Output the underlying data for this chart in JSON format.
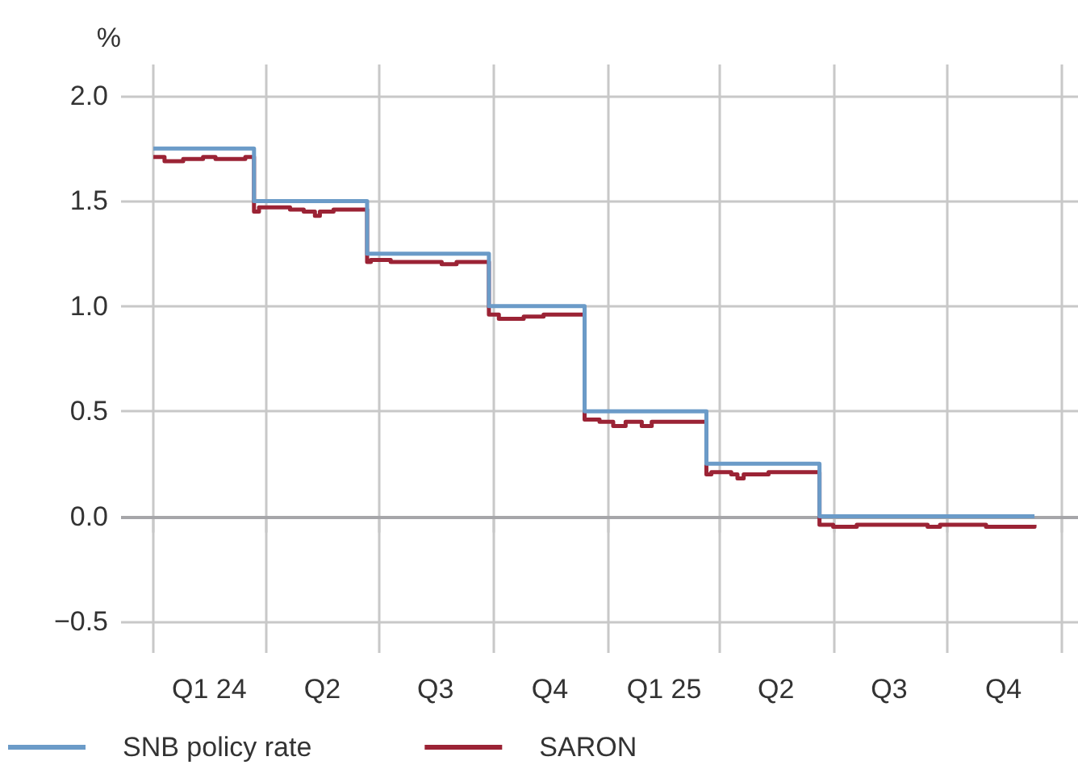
{
  "chart_data": {
    "type": "step",
    "ylabel": "%",
    "xlim": [
      "2023-12-06",
      "2026-01-14"
    ],
    "xticks": [
      {
        "value": "2024-01-01",
        "label": null
      },
      {
        "value": "2024-02-15",
        "label": "Q1 24"
      },
      {
        "value": "2024-04-01",
        "label": null
      },
      {
        "value": "2024-05-16",
        "label": "Q2"
      },
      {
        "value": "2024-07-01",
        "label": null
      },
      {
        "value": "2024-08-15",
        "label": "Q3"
      },
      {
        "value": "2024-10-01",
        "label": null
      },
      {
        "value": "2024-11-15",
        "label": "Q4"
      },
      {
        "value": "2025-01-01",
        "label": null
      },
      {
        "value": "2025-02-15",
        "label": "Q1 25"
      },
      {
        "value": "2025-04-01",
        "label": null
      },
      {
        "value": "2025-05-16",
        "label": "Q2"
      },
      {
        "value": "2025-07-01",
        "label": null
      },
      {
        "value": "2025-08-15",
        "label": "Q3"
      },
      {
        "value": "2025-10-01",
        "label": null
      },
      {
        "value": "2025-11-15",
        "label": "Q4"
      },
      {
        "value": "2026-01-01",
        "label": null
      }
    ],
    "ylim": [
      -0.65,
      2.15
    ],
    "yticks": [
      {
        "value": -0.5,
        "label": "−0.5"
      },
      {
        "value": 0,
        "label": "0.0"
      },
      {
        "value": 0.5,
        "label": "0.5"
      },
      {
        "value": 1,
        "label": "1.0"
      },
      {
        "value": 1.5,
        "label": "1.5"
      },
      {
        "value": 2,
        "label": "2.0"
      }
    ],
    "grid": true,
    "legend": "bottom left",
    "ref_lines": [
      {
        "axis": "y",
        "value": 0,
        "color": "#a6a6a9"
      }
    ],
    "series": [
      {
        "name": "SNB policy rate",
        "color": "#6b9bc8",
        "x": [
          "2024-01-01",
          "2024-03-22",
          "2024-06-21",
          "2024-09-27",
          "2024-12-13",
          "2025-03-21",
          "2025-06-20",
          "2025-12-10"
        ],
        "values": [
          1.75,
          1.5,
          1.25,
          1.0,
          0.5,
          0.25,
          0,
          0
        ]
      },
      {
        "name": "SARON",
        "color": "#9b2335",
        "x": [
          "2024-01-01",
          "2024-01-10",
          "2024-01-25",
          "2024-02-10",
          "2024-02-20",
          "2024-03-15",
          "2024-03-22",
          "2024-03-26",
          "2024-04-20",
          "2024-05-01",
          "2024-05-10",
          "2024-05-14",
          "2024-05-25",
          "2024-06-21",
          "2024-06-24",
          "2024-07-10",
          "2024-08-20",
          "2024-09-01",
          "2024-09-27",
          "2024-10-05",
          "2024-10-25",
          "2024-11-10",
          "2024-12-13",
          "2024-12-25",
          "2025-01-05",
          "2025-01-15",
          "2025-01-28",
          "2025-02-05",
          "2025-03-21",
          "2025-03-25",
          "2025-04-10",
          "2025-04-15",
          "2025-04-20",
          "2025-05-10",
          "2025-06-20",
          "2025-07-01",
          "2025-07-20",
          "2025-09-15",
          "2025-09-25",
          "2025-11-01",
          "2025-12-10"
        ],
        "values": [
          1.71,
          1.69,
          1.7,
          1.71,
          1.7,
          1.71,
          1.45,
          1.47,
          1.46,
          1.45,
          1.43,
          1.45,
          1.46,
          1.21,
          1.22,
          1.21,
          1.2,
          1.21,
          0.96,
          0.94,
          0.95,
          0.96,
          0.46,
          0.45,
          0.43,
          0.45,
          0.43,
          0.45,
          0.2,
          0.21,
          0.2,
          0.18,
          0.2,
          0.21,
          -0.04,
          -0.05,
          -0.04,
          -0.05,
          -0.04,
          -0.05,
          -0.04
        ]
      }
    ]
  }
}
